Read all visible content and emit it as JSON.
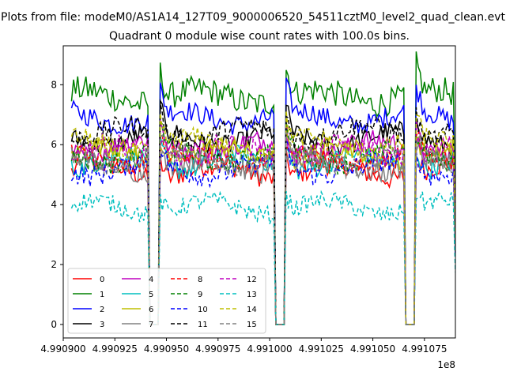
{
  "chart_data": {
    "type": "line",
    "suptitle": "Plots from file: modeM0/AS1A14_127T09_9000006520_54511cztM0_level2_quad_clean.evt",
    "title": "Quadrant 0 module wise count rates with 100.0s bins.",
    "xlabel": "",
    "ylabel": "",
    "x_offset_label": "1e8",
    "xlim": [
      4.9909,
      4.99109
    ],
    "ylim": [
      -0.45,
      9.3
    ],
    "x_ticks": [
      4.9909,
      4.990925,
      4.99095,
      4.990975,
      4.991,
      4.991025,
      4.99105,
      4.991075
    ],
    "x_tick_labels": [
      "4.990900",
      "4.990925",
      "4.990950",
      "4.990975",
      "4.991000",
      "4.991025",
      "4.991050",
      "4.991075"
    ],
    "y_ticks": [
      0,
      2,
      4,
      6,
      8
    ],
    "y_tick_labels": [
      "0",
      "2",
      "4",
      "6",
      "8"
    ],
    "data_start": 4.990904,
    "data_end": 4.99109,
    "gaps": [
      [
        4.990942,
        4.990947
      ],
      [
        4.991003,
        4.991008
      ],
      [
        4.991066,
        4.991071
      ]
    ],
    "legend_location": "lower-left",
    "legend_columns": 4,
    "series": [
      {
        "name": "0",
        "color": "#ff0000",
        "dashed": false,
        "level": 5.1
      },
      {
        "name": "1",
        "color": "#008000",
        "dashed": false,
        "level": 7.6
      },
      {
        "name": "2",
        "color": "#0000ff",
        "dashed": false,
        "level": 6.9
      },
      {
        "name": "3",
        "color": "#000000",
        "dashed": false,
        "level": 6.2
      },
      {
        "name": "4",
        "color": "#bf00bf",
        "dashed": false,
        "level": 5.9
      },
      {
        "name": "5",
        "color": "#00bfbf",
        "dashed": false,
        "level": 5.4
      },
      {
        "name": "6",
        "color": "#bfbf00",
        "dashed": false,
        "level": 5.7
      },
      {
        "name": "7",
        "color": "#808080",
        "dashed": false,
        "level": 5.3
      },
      {
        "name": "8",
        "color": "#ff0000",
        "dashed": true,
        "level": 5.5
      },
      {
        "name": "9",
        "color": "#008000",
        "dashed": true,
        "level": 5.6
      },
      {
        "name": "10",
        "color": "#0000ff",
        "dashed": true,
        "level": 5.2
      },
      {
        "name": "11",
        "color": "#000000",
        "dashed": true,
        "level": 6.4
      },
      {
        "name": "12",
        "color": "#bf00bf",
        "dashed": true,
        "level": 5.8
      },
      {
        "name": "13",
        "color": "#00bfbf",
        "dashed": true,
        "level": 3.9
      },
      {
        "name": "14",
        "color": "#bfbf00",
        "dashed": true,
        "level": 6.0
      },
      {
        "name": "15",
        "color": "#808080",
        "dashed": true,
        "level": 5.5
      }
    ]
  }
}
